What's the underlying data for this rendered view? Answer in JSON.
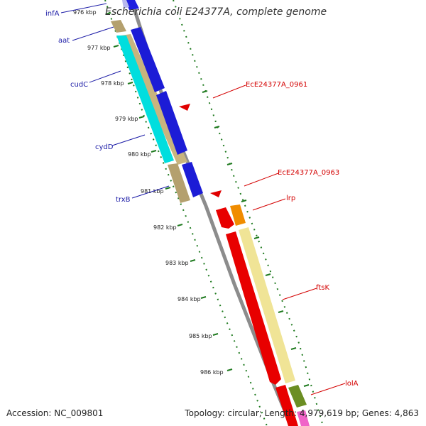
{
  "title": "Escherichia coli E24377A, complete genome",
  "footer": {
    "accession": "Accession: NC_009801",
    "summary": "Topology: circular; Length: 4,979,619 bp; Genes: 4,863"
  },
  "colors": {
    "backbone": "#8c8c8c",
    "tick": "#1f7a1f",
    "left_label": "#1a1aa6",
    "right_label": "#d40000"
  },
  "kbp_ticks": [
    {
      "kbp": 976,
      "label": "976 kbp"
    },
    {
      "kbp": 977,
      "label": "977 kbp"
    },
    {
      "kbp": 978,
      "label": "978 kbp"
    },
    {
      "kbp": 979,
      "label": "979 kbp"
    },
    {
      "kbp": 980,
      "label": "980 kbp"
    },
    {
      "kbp": 981,
      "label": "981 kbp"
    },
    {
      "kbp": 982,
      "label": "982 kbp"
    },
    {
      "kbp": 983,
      "label": "983 kbp"
    },
    {
      "kbp": 984,
      "label": "984 kbp"
    },
    {
      "kbp": 985,
      "label": "985 kbp"
    },
    {
      "kbp": 986,
      "label": "986 kbp"
    }
  ],
  "left_labels": [
    {
      "name": "infA",
      "label": "infA"
    },
    {
      "name": "aat",
      "label": "aat"
    },
    {
      "name": "cudC",
      "label": "cudC"
    },
    {
      "name": "cydD",
      "label": "cydD"
    },
    {
      "name": "trxB",
      "label": "trxB"
    }
  ],
  "right_labels": [
    {
      "name": "EcE24377A_0961",
      "label": "EcE24377A_0961"
    },
    {
      "name": "EcE24377A_0963",
      "label": "EcE24377A_0963"
    },
    {
      "name": "lrp",
      "label": "lrp"
    },
    {
      "name": "ftsK",
      "label": "ftsK"
    },
    {
      "name": "lolA",
      "label": "lolA"
    }
  ]
}
